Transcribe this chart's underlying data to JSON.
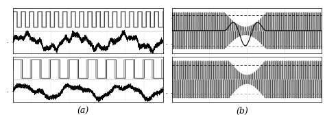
{
  "fig_width": 4.74,
  "fig_height": 1.71,
  "dpi": 100,
  "background_color": "#ffffff",
  "panel_a_label": "(a)",
  "panel_b_label": "(b)",
  "line_color_dark": "#000000",
  "line_color_gray": "#777777",
  "grid_color": "#888888"
}
